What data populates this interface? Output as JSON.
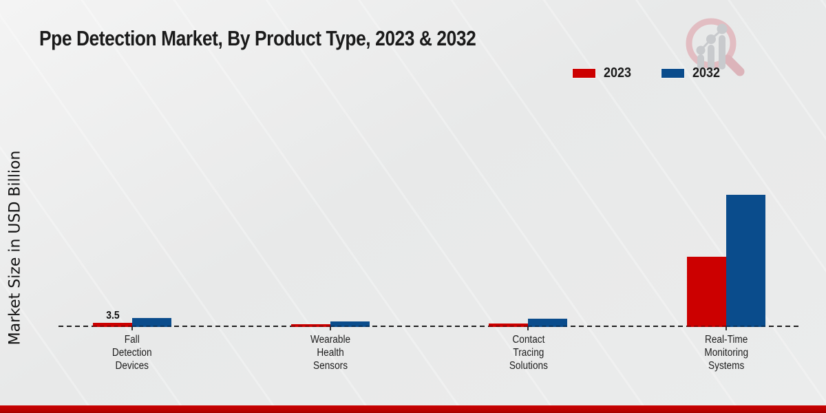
{
  "title": "Ppe Detection Market, By Product Type, 2023 & 2032",
  "y_axis_label": "Market Size in USD Billion",
  "legend": {
    "items": [
      {
        "label": "2023",
        "color": "#cc0000"
      },
      {
        "label": "2032",
        "color": "#0a4c8c"
      }
    ]
  },
  "colors": {
    "series_2023": "#cc0000",
    "series_2032": "#0a4c8c",
    "bottom_strip": "#c00000",
    "text": "#1a1a1a",
    "watermark_ring": "#e2bdc2",
    "watermark_bars": "#c8cacd"
  },
  "watermark": {
    "name": "magnifier-bar-chart-logo"
  },
  "chart_data": {
    "type": "bar",
    "title": "Ppe Detection Market, By Product Type, 2023 & 2032",
    "xlabel": "",
    "ylabel": "Market Size in USD Billion",
    "categories": [
      "Fall Detection Devices",
      "Wearable Health Sensors",
      "Contact Tracing Solutions",
      "Real-Time Monitoring Systems"
    ],
    "series": [
      {
        "name": "2023",
        "color": "#cc0000",
        "values": [
          3.5,
          2.6,
          2.9,
          59.5
        ]
      },
      {
        "name": "2032",
        "color": "#0a4c8c",
        "values": [
          7.5,
          4.4,
          7.0,
          112.0
        ]
      }
    ],
    "annotations": [
      {
        "series": "2023",
        "category_index": 0,
        "text": "3.5"
      }
    ],
    "ylim": [
      0,
      115
    ],
    "grid": "dashed-zero-baseline-only",
    "legend_position": "upper-right"
  }
}
